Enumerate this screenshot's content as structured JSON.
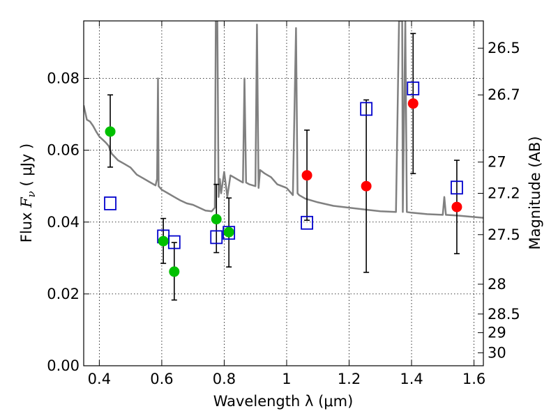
{
  "chart_data": {
    "type": "scatter",
    "xlabel": "Wavelength  λ (μm)",
    "ylabel": "Flux  F_ν  ( μJy )",
    "ylabel_parts": {
      "prefix": "Flux  ",
      "symbol": "F",
      "subscript": "ν",
      "suffix": "  ( μJy )"
    },
    "y2label": "Magnitude (AB)",
    "xlim": [
      0.35,
      1.63
    ],
    "ylim": [
      0.0,
      0.096
    ],
    "grid": true,
    "x_ticks": [
      0.4,
      0.6,
      0.8,
      1.0,
      1.2,
      1.4,
      1.6
    ],
    "x_tick_labels": [
      "0.4",
      "0.6",
      "0.8",
      "1",
      "1.2",
      "1.4",
      "1.6"
    ],
    "y_ticks": [
      0.0,
      0.02,
      0.04,
      0.06,
      0.08
    ],
    "y_tick_labels": [
      "0.00",
      "0.02",
      "0.04",
      "0.06",
      "0.08"
    ],
    "y2_ticks": [
      {
        "label": "26.5",
        "flux": 0.0884
      },
      {
        "label": "26.7",
        "flux": 0.0754
      },
      {
        "label": "27",
        "flux": 0.0567
      },
      {
        "label": "27.2",
        "flux": 0.048
      },
      {
        "label": "27.5",
        "flux": 0.0365
      },
      {
        "label": "28",
        "flux": 0.0227
      },
      {
        "label": "28.5",
        "flux": 0.0144
      },
      {
        "label": "29",
        "flux": 0.0092
      },
      {
        "label": "30",
        "flux": 0.0036
      }
    ],
    "colors": {
      "sed": "#808080",
      "green": "#00c000",
      "red": "#ff0000",
      "model_box": "#0000cc",
      "errorbar": "#000000"
    },
    "sed_model": {
      "x": [
        0.35,
        0.36,
        0.37,
        0.38,
        0.39,
        0.4,
        0.41,
        0.42,
        0.43,
        0.435,
        0.44,
        0.46,
        0.48,
        0.5,
        0.52,
        0.54,
        0.56,
        0.58,
        0.585,
        0.588,
        0.59,
        0.595,
        0.6,
        0.62,
        0.64,
        0.66,
        0.68,
        0.7,
        0.72,
        0.74,
        0.76,
        0.77,
        0.773,
        0.778,
        0.782,
        0.786,
        0.79,
        0.8,
        0.81,
        0.82,
        0.84,
        0.86,
        0.865,
        0.87,
        0.88,
        0.9,
        0.905,
        0.91,
        0.915,
        0.93,
        0.95,
        0.97,
        1.0,
        1.02,
        1.03,
        1.035,
        1.04,
        1.05,
        1.06,
        1.08,
        1.1,
        1.15,
        1.2,
        1.25,
        1.3,
        1.35,
        1.36,
        1.37,
        1.372,
        1.38,
        1.385,
        1.4,
        1.45,
        1.5,
        1.505,
        1.51,
        1.55,
        1.6,
        1.63
      ],
      "y": [
        0.0725,
        0.0685,
        0.068,
        0.0668,
        0.0652,
        0.0638,
        0.063,
        0.0622,
        0.0612,
        0.06,
        0.059,
        0.0572,
        0.0562,
        0.0552,
        0.0532,
        0.0522,
        0.0512,
        0.0502,
        0.052,
        0.08,
        0.05,
        0.0495,
        0.049,
        0.048,
        0.047,
        0.046,
        0.0452,
        0.0448,
        0.044,
        0.0432,
        0.043,
        0.044,
        0.096,
        0.096,
        0.047,
        0.052,
        0.048,
        0.054,
        0.047,
        0.053,
        0.052,
        0.051,
        0.08,
        0.051,
        0.0505,
        0.05,
        0.095,
        0.0495,
        0.0545,
        0.0535,
        0.0525,
        0.0505,
        0.0495,
        0.0475,
        0.094,
        0.048,
        0.0475,
        0.047,
        0.0465,
        0.046,
        0.0455,
        0.0445,
        0.044,
        0.0435,
        0.043,
        0.0428,
        0.096,
        0.096,
        0.0428,
        0.096,
        0.0428,
        0.0426,
        0.0422,
        0.042,
        0.047,
        0.042,
        0.0418,
        0.0414,
        0.0412
      ]
    },
    "series": [
      {
        "marker": "filled-circle",
        "color": "green",
        "points": [
          {
            "x": 0.435,
            "y": 0.0652,
            "err": [
              0.0553,
              0.0754
            ]
          },
          {
            "x": 0.605,
            "y": 0.0347,
            "err": [
              0.0285,
              0.041
            ]
          },
          {
            "x": 0.64,
            "y": 0.0262,
            "err": [
              0.0183,
              0.0343
            ]
          },
          {
            "x": 0.775,
            "y": 0.0408,
            "err": [
              0.0315,
              0.0505
            ]
          },
          {
            "x": 0.815,
            "y": 0.0372,
            "err": [
              0.0275,
              0.0467
            ]
          }
        ]
      },
      {
        "marker": "filled-circle",
        "color": "red",
        "points": [
          {
            "x": 1.065,
            "y": 0.053,
            "err": [
              0.0405,
              0.0656
            ]
          },
          {
            "x": 1.255,
            "y": 0.05,
            "err": [
              0.026,
              0.074
            ]
          },
          {
            "x": 1.405,
            "y": 0.073,
            "err": [
              0.0535,
              0.0925
            ]
          },
          {
            "x": 1.545,
            "y": 0.0442,
            "err": [
              0.0312,
              0.0572
            ]
          }
        ]
      },
      {
        "marker": "open-square",
        "color": "model_box",
        "points": [
          {
            "x": 0.435,
            "y": 0.0452
          },
          {
            "x": 0.605,
            "y": 0.036
          },
          {
            "x": 0.64,
            "y": 0.0344
          },
          {
            "x": 0.775,
            "y": 0.0358
          },
          {
            "x": 0.815,
            "y": 0.037
          },
          {
            "x": 1.065,
            "y": 0.0398
          },
          {
            "x": 1.255,
            "y": 0.0715
          },
          {
            "x": 1.405,
            "y": 0.0772
          },
          {
            "x": 1.545,
            "y": 0.0496
          }
        ]
      }
    ]
  }
}
